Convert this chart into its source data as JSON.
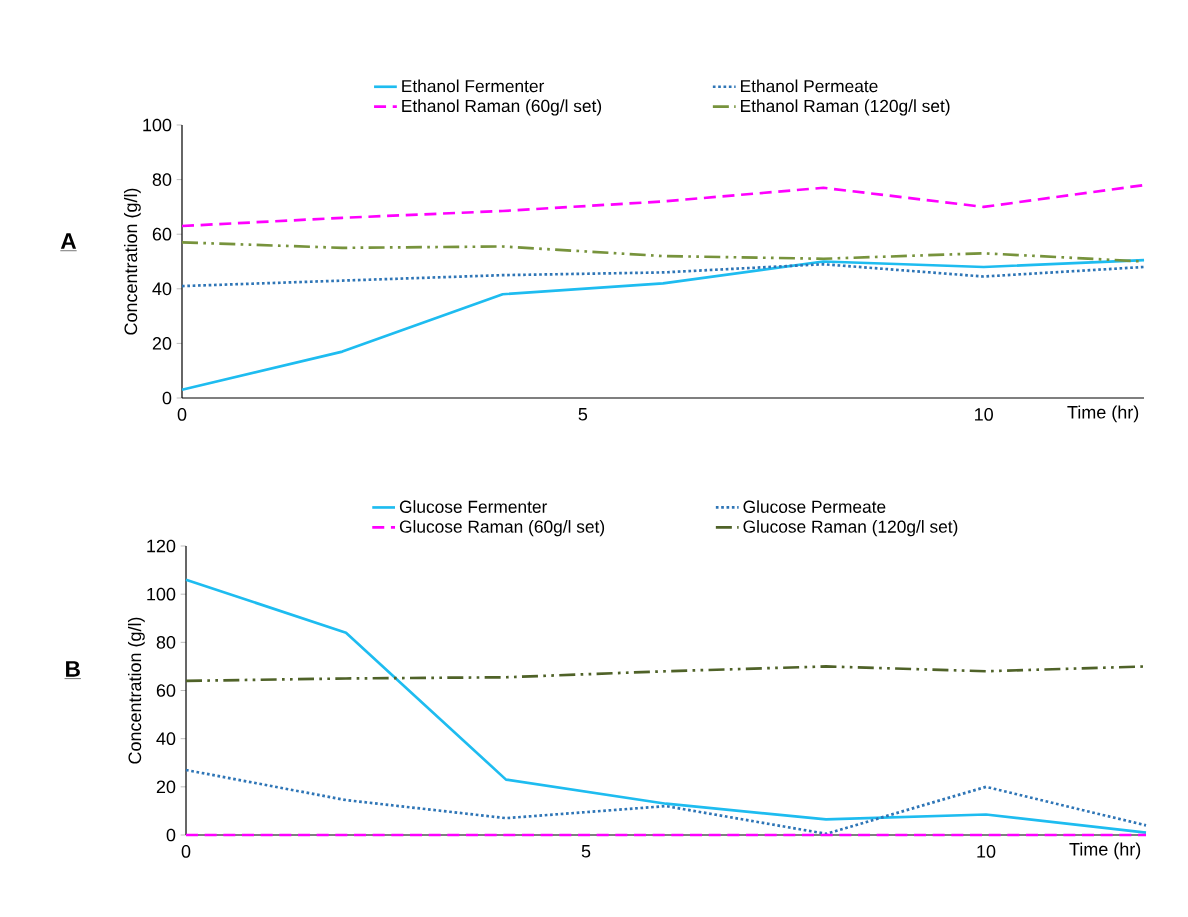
{
  "chart_data": [
    {
      "type": "line",
      "xlabel": "Time (hr)",
      "ylabel": "Concentration  (g/l)",
      "annotations": [
        "A"
      ],
      "xlim": [
        0,
        12
      ],
      "xticks": [
        0,
        5,
        10
      ],
      "ylim": [
        0,
        100
      ],
      "yticks": [
        0,
        20,
        40,
        60,
        80,
        100
      ],
      "grid": false,
      "legend": "top",
      "marker": "none",
      "x": [
        0,
        2,
        4,
        6,
        8,
        10,
        12
      ],
      "series": [
        {
          "name": "Ethanol Fermenter",
          "color": "#1ebcf0",
          "line_style": "solid",
          "values": [
            3,
            17,
            38,
            42,
            50,
            48,
            50.5
          ]
        },
        {
          "name": "Ethanol Permeate",
          "color": "#2e75b6",
          "line_style": "dotted",
          "values": [
            41,
            43,
            45,
            46,
            49,
            44.5,
            48
          ]
        },
        {
          "name": "Ethanol Raman (60g/l set)",
          "color": "#ff00ff",
          "line_style": "dashed",
          "values": [
            63,
            66,
            68.5,
            72,
            77,
            70,
            78
          ]
        },
        {
          "name": "Ethanol Raman (120g/l set)",
          "color": "#77933c",
          "line_style": "dashdot",
          "values": [
            57,
            55,
            55.5,
            52,
            51,
            53,
            50
          ]
        }
      ]
    },
    {
      "type": "line",
      "xlabel": "Time (hr)",
      "ylabel": "Concentration  (g/l)",
      "annotations": [
        "B"
      ],
      "xlim": [
        0,
        12
      ],
      "xticks": [
        0,
        5,
        10
      ],
      "ylim": [
        0,
        120
      ],
      "yticks": [
        0,
        20,
        40,
        60,
        80,
        100,
        120
      ],
      "grid": false,
      "legend": "top",
      "marker": "none",
      "x": [
        0,
        2,
        4,
        6,
        8,
        10,
        12
      ],
      "series": [
        {
          "name": "Glucose Fermenter",
          "color": "#1ebcf0",
          "line_style": "solid",
          "values": [
            106,
            84,
            23,
            13,
            6.5,
            8.5,
            1
          ]
        },
        {
          "name": "Glucose Permeate",
          "color": "#2e75b6",
          "line_style": "dotted",
          "values": [
            27,
            14.5,
            7,
            12,
            0.5,
            20,
            4
          ]
        },
        {
          "name": "Glucose Raman (60g/l set)",
          "color": "#ff00ff",
          "line_style": "dashed",
          "values": [
            0,
            0,
            0,
            0,
            0,
            0,
            0
          ]
        },
        {
          "name": "Glucose Raman (120g/l set)",
          "color": "#4f6228",
          "line_style": "dashdot",
          "values": [
            64,
            65,
            65.5,
            68,
            70,
            68,
            70
          ]
        }
      ]
    }
  ]
}
